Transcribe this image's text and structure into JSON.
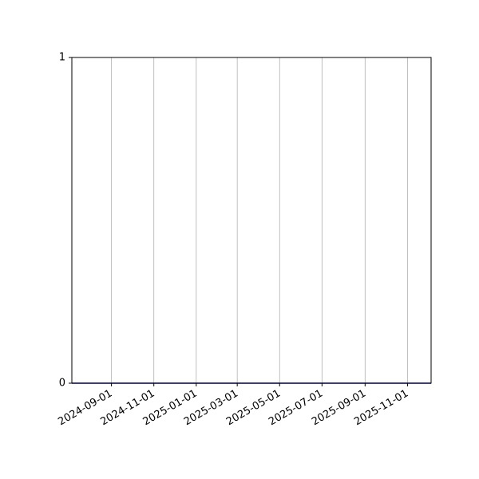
{
  "chart_data": {
    "type": "line",
    "x": [
      "2024-07-06",
      "2024-09-01",
      "2024-11-01",
      "2025-01-01",
      "2025-03-01",
      "2025-05-01",
      "2025-07-01",
      "2025-09-01",
      "2025-11-01",
      "2025-12-05"
    ],
    "series": [
      {
        "color": "#000080",
        "values": [
          0,
          0,
          0,
          0,
          0,
          0,
          0,
          0,
          0,
          0
        ]
      }
    ],
    "xlim": [
      "2024-07-06",
      "2025-12-05"
    ],
    "xticks": [
      "2024-09-01",
      "2024-11-01",
      "2025-01-01",
      "2025-03-01",
      "2025-05-01",
      "2025-07-01",
      "2025-09-01",
      "2025-11-01"
    ],
    "ylim": [
      0,
      1
    ],
    "yticks": [
      0,
      1
    ],
    "grid": "x"
  }
}
